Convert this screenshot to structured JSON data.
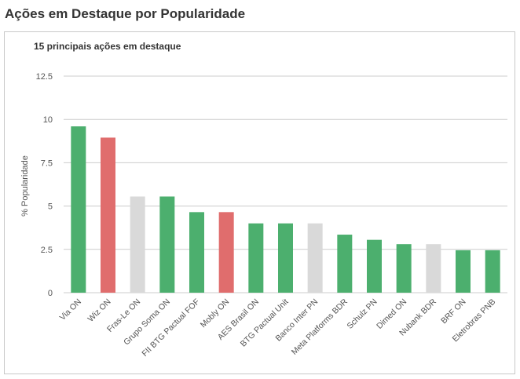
{
  "page": {
    "title": "Ações em Destaque por Popularidade"
  },
  "colors": {
    "up": "#4caf6e",
    "down": "#e06d6d",
    "neutral": "#d9d9d9",
    "grid": "#cccccc"
  },
  "chart_data": {
    "type": "bar",
    "title": "15 principais ações em destaque",
    "xlabel": "",
    "ylabel": "% Popularidade",
    "ylim": [
      0,
      12.5
    ],
    "yticks": [
      "0",
      "2.5",
      "5",
      "7.5",
      "10",
      "12.5"
    ],
    "grid": true,
    "legend": "none",
    "categories": [
      "Via ON",
      "Wiz ON",
      "Fras-Le ON",
      "Grupo Soma ON",
      "FII BTG Pactual FOF",
      "Mobly ON",
      "AES Brasil ON",
      "BTG Pactual Unit",
      "Banco Inter PN",
      "Meta Platforms BDR",
      "Schulz PN",
      "Dimed ON",
      "Nubank BDR",
      "BRF ON",
      "Eletrobras PNB"
    ],
    "values": [
      9.6,
      8.95,
      5.55,
      5.55,
      4.65,
      4.65,
      4.0,
      4.0,
      4.0,
      3.35,
      3.05,
      2.8,
      2.8,
      2.45,
      2.45
    ],
    "bar_status": [
      "up",
      "down",
      "neutral",
      "up",
      "up",
      "down",
      "up",
      "up",
      "neutral",
      "up",
      "up",
      "up",
      "neutral",
      "up",
      "up"
    ]
  }
}
